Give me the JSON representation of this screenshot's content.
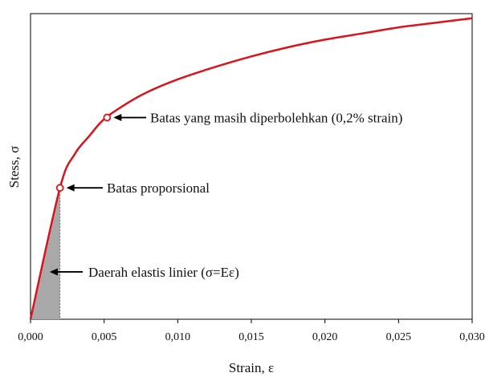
{
  "chart_data": {
    "type": "line",
    "title": "",
    "xlabel": "Strain, ε",
    "ylabel": "Stess, σ",
    "xlim": [
      0,
      0.03
    ],
    "ylim": [
      0,
      1
    ],
    "x_ticks": [
      "0,000",
      "0,005",
      "0,010",
      "0,015",
      "0,020",
      "0,025",
      "0,030"
    ],
    "y_ticks": [],
    "grid": false,
    "legend": "none",
    "series": [
      {
        "color": "#d9141b",
        "points": [
          [
            0.0,
            0.0
          ],
          [
            0.002,
            0.43
          ],
          [
            0.003,
            0.54
          ],
          [
            0.004,
            0.6
          ],
          [
            0.005,
            0.655
          ],
          [
            0.0065,
            0.705
          ],
          [
            0.008,
            0.745
          ],
          [
            0.01,
            0.785
          ],
          [
            0.0125,
            0.825
          ],
          [
            0.015,
            0.86
          ],
          [
            0.0175,
            0.89
          ],
          [
            0.02,
            0.915
          ],
          [
            0.0225,
            0.935
          ],
          [
            0.025,
            0.955
          ],
          [
            0.0275,
            0.97
          ],
          [
            0.03,
            0.985
          ]
        ]
      }
    ],
    "shaded_region": {
      "x": [
        0,
        0.002
      ],
      "color": "#a9a9a9"
    },
    "markers": [
      {
        "x": 0.002,
        "y": 0.43,
        "label": "Batas proporsional"
      },
      {
        "x": 0.0052,
        "y": 0.66,
        "label": "Batas yang masih diperbolehkan (0,2% strain)"
      }
    ],
    "annotations": [
      {
        "x": 0.0013,
        "y": 0.155,
        "label": "Daerah elastis linier (σ=Eε)"
      }
    ]
  }
}
